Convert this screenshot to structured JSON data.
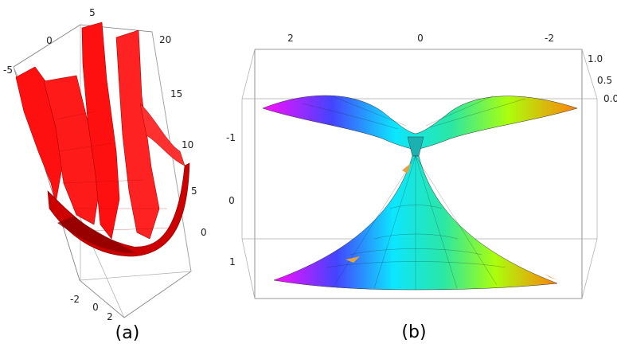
{
  "panel_a": {
    "caption": "(a)",
    "ticks_top": [
      "0",
      "5",
      "-5"
    ],
    "ticks_z": [
      "20",
      "15",
      "10",
      "5",
      "0"
    ],
    "ticks_bottom": [
      "-2",
      "0",
      "2"
    ],
    "surface_color": "#ff1010"
  },
  "panel_b": {
    "caption": "(b)",
    "ticks_top": [
      "2",
      "0",
      "-2"
    ],
    "ticks_right": [
      "1.0",
      "0.5",
      "0.0"
    ],
    "ticks_left": [
      "-1",
      "0",
      "1"
    ],
    "colormap": [
      "#ff00ff",
      "#0000ff",
      "#00ffff",
      "#00ff00",
      "#ffff00",
      "#ff8000"
    ]
  }
}
